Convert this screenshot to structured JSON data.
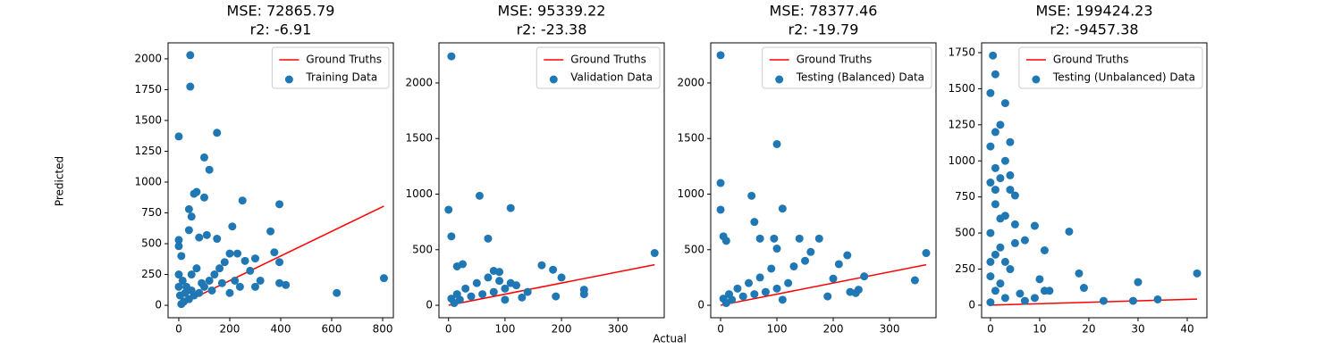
{
  "figure": {
    "xlabel": "Actual",
    "ylabel": "Predicted"
  },
  "chart_data": [
    {
      "type": "scatter",
      "title": "MSE: 72865.79",
      "subtitle": "r2: -6.91",
      "xlim": [
        -42,
        842
      ],
      "ylim": [
        -101,
        2130
      ],
      "xticks": [
        0,
        200,
        400,
        600,
        800
      ],
      "yticks": [
        0,
        250,
        500,
        750,
        1000,
        1250,
        1500,
        1750,
        2000
      ],
      "legend": "upper right",
      "series": [
        {
          "name": "Ground Truths",
          "type": "line",
          "color": "#ff0000",
          "x": [
            0,
            805
          ],
          "values": [
            0,
            805
          ]
        },
        {
          "name": "Training Data",
          "type": "scatter",
          "color": "#1f77b4",
          "x": [
            0,
            45,
            45,
            150,
            120,
            100,
            70,
            60,
            100,
            40,
            50,
            250,
            395,
            210,
            360,
            0,
            0,
            40,
            110,
            150,
            80,
            10,
            200,
            230,
            260,
            300,
            375,
            395,
            420,
            395,
            620,
            805,
            320,
            300,
            280,
            180,
            160,
            140,
            120,
            100,
            80,
            60,
            40,
            20,
            10,
            30,
            50,
            70,
            90,
            130,
            170,
            200,
            220,
            240,
            0,
            0,
            5,
            15,
            25,
            50
          ],
          "values": [
            1370,
            2030,
            1775,
            1400,
            1100,
            1200,
            920,
            905,
            875,
            780,
            720,
            850,
            820,
            640,
            600,
            530,
            480,
            610,
            570,
            540,
            550,
            400,
            420,
            420,
            360,
            380,
            430,
            350,
            165,
            180,
            100,
            220,
            200,
            150,
            280,
            350,
            300,
            250,
            200,
            150,
            100,
            80,
            50,
            30,
            10,
            150,
            250,
            300,
            180,
            120,
            180,
            100,
            200,
            150,
            250,
            150,
            80,
            200,
            100,
            120
          ]
        }
      ]
    },
    {
      "type": "scatter",
      "title": "MSE: 95339.22",
      "subtitle": "r2: -23.38",
      "xlim": [
        -17,
        382
      ],
      "ylim": [
        -112,
        2361
      ],
      "xticks": [
        0,
        100,
        200,
        300
      ],
      "yticks": [
        0,
        500,
        1000,
        1500,
        2000
      ],
      "legend": "upper right",
      "series": [
        {
          "name": "Ground Truths",
          "type": "line",
          "color": "#ff0000",
          "x": [
            0,
            365
          ],
          "values": [
            0,
            365
          ]
        },
        {
          "name": "Validation Data",
          "type": "scatter",
          "color": "#1f77b4",
          "x": [
            5,
            0,
            55,
            110,
            5,
            70,
            15,
            25,
            90,
            80,
            165,
            185,
            200,
            365,
            240,
            240,
            190,
            110,
            120,
            100,
            80,
            60,
            40,
            20,
            10,
            30,
            50,
            15,
            5,
            100,
            130,
            140,
            70,
            90
          ],
          "values": [
            2240,
            860,
            985,
            875,
            620,
            600,
            350,
            370,
            300,
            310,
            360,
            320,
            250,
            470,
            140,
            100,
            80,
            200,
            180,
            150,
            120,
            100,
            80,
            50,
            20,
            150,
            200,
            100,
            60,
            50,
            70,
            120,
            250,
            220
          ]
        }
      ]
    },
    {
      "type": "scatter",
      "title": "MSE: 78377.46",
      "subtitle": "r2: -19.79",
      "xlim": [
        -17.5,
        382.5
      ],
      "ylim": [
        -112,
        2361
      ],
      "xticks": [
        0,
        100,
        200,
        300
      ],
      "yticks": [
        0,
        500,
        1000,
        1500,
        2000
      ],
      "legend": "upper right",
      "series": [
        {
          "name": "Ground Truths",
          "type": "line",
          "color": "#ff0000",
          "x": [
            0,
            365
          ],
          "values": [
            0,
            365
          ]
        },
        {
          "name": "Testing (Balanced) Data",
          "type": "scatter",
          "color": "#1f77b4",
          "x": [
            0,
            0,
            100,
            0,
            55,
            110,
            5,
            10,
            70,
            95,
            60,
            100,
            140,
            175,
            160,
            225,
            210,
            150,
            130,
            90,
            345,
            365,
            255,
            245,
            240,
            190,
            200,
            120,
            100,
            80,
            60,
            40,
            20,
            10,
            30,
            50,
            15,
            5,
            110,
            70,
            230
          ],
          "values": [
            2250,
            1100,
            1450,
            860,
            985,
            870,
            620,
            580,
            600,
            600,
            750,
            510,
            600,
            600,
            480,
            450,
            370,
            400,
            350,
            330,
            225,
            470,
            260,
            140,
            110,
            80,
            240,
            200,
            150,
            120,
            100,
            80,
            50,
            20,
            150,
            200,
            100,
            60,
            50,
            250,
            120
          ]
        }
      ]
    },
    {
      "type": "scatter",
      "title": "MSE: 199424.23",
      "subtitle": "r2: -9457.38",
      "xlim": [
        -1.8,
        44
      ],
      "ylim": [
        -87,
        1818
      ],
      "xticks": [
        0,
        10,
        20,
        30,
        40
      ],
      "yticks": [
        0,
        250,
        500,
        750,
        1000,
        1250,
        1500,
        1750
      ],
      "legend": "upper right",
      "series": [
        {
          "name": "Ground Truths",
          "type": "line",
          "color": "#ff0000",
          "x": [
            0,
            42
          ],
          "values": [
            0,
            42
          ]
        },
        {
          "name": "Testing (Unbalanced) Data",
          "type": "scatter",
          "color": "#1f77b4",
          "x": [
            0,
            0.5,
            1,
            3,
            2,
            1,
            4,
            0,
            3,
            1,
            4,
            2,
            0,
            4,
            5,
            1,
            3,
            5,
            9,
            5,
            7,
            16,
            11,
            0,
            2,
            1,
            3,
            4,
            0,
            2,
            1,
            3,
            0,
            10,
            11,
            12,
            9,
            18,
            19,
            23,
            29,
            30,
            34,
            42,
            6,
            7,
            2,
            1,
            0
          ],
          "values": [
            1470,
            1730,
            1600,
            1400,
            1250,
            1200,
            1130,
            1100,
            1000,
            950,
            900,
            880,
            850,
            800,
            760,
            700,
            620,
            560,
            550,
            430,
            450,
            510,
            380,
            500,
            400,
            350,
            300,
            250,
            200,
            150,
            100,
            50,
            20,
            180,
            100,
            100,
            50,
            220,
            120,
            30,
            30,
            160,
            40,
            220,
            80,
            30,
            600,
            800,
            300
          ]
        }
      ]
    }
  ]
}
